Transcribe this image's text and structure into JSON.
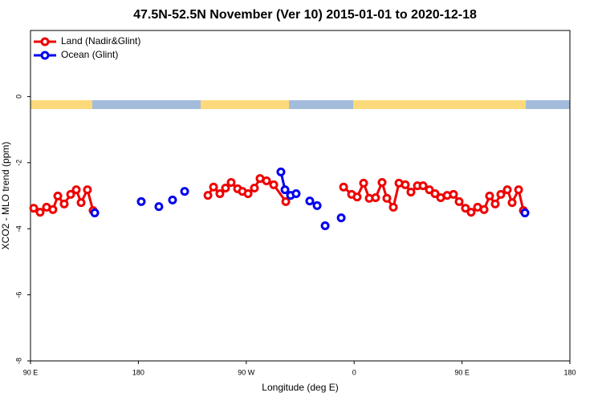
{
  "chart_data": {
    "type": "line",
    "title": "47.5N-52.5N November (Ver 10)   2015-01-01 to 2020-12-18",
    "x_label": "Longitude (deg E)",
    "y_label": "XCO2 - MLO trend (ppm)",
    "xlim": [
      90,
      540
    ],
    "xticks": [
      {
        "value": 90,
        "label": "90 E"
      },
      {
        "value": 180,
        "label": "180"
      },
      {
        "value": 270,
        "label": "90 W"
      },
      {
        "value": 360,
        "label": "0"
      },
      {
        "value": 450,
        "label": "90 E"
      },
      {
        "value": 540,
        "label": "180"
      }
    ],
    "ylim": [
      -8,
      2
    ],
    "yticks": [
      0,
      -2,
      -4,
      -6,
      -8
    ],
    "legend": "top-left",
    "series": [
      {
        "name": "Land (Nadir&Glint)",
        "color": "#ee0000",
        "x": [
          92.7,
          98,
          103.4,
          108.7,
          112.8,
          118.1,
          123.5,
          128.2,
          132.2,
          137.5,
          142.2,
          null,
          238,
          242.7,
          248,
          252.7,
          257.4,
          262.8,
          266.8,
          271.5,
          276.8,
          281.5,
          286.9,
          292.9,
          303,
          null,
          351.2,
          357.9,
          362.5,
          367.9,
          372.6,
          377.9,
          383.3,
          387.3,
          392.7,
          397.4,
          402.7,
          407.4,
          412.8,
          417.5,
          422.8,
          427.5,
          432.2,
          437.6,
          442.9,
          447.6,
          452.9,
          457.6,
          463,
          468.4,
          473,
          477.7,
          482.4,
          487.8,
          491.8,
          497.2,
          501.2
        ],
        "values": [
          -3.38,
          -3.5,
          -3.35,
          -3.42,
          -3.01,
          -3.25,
          -2.96,
          -2.82,
          -3.21,
          -2.82,
          -3.45,
          null,
          -2.99,
          -2.74,
          -2.94,
          -2.77,
          -2.6,
          -2.79,
          -2.87,
          -2.94,
          -2.77,
          -2.48,
          -2.55,
          -2.67,
          -3.18,
          null,
          -2.74,
          -2.96,
          -3.04,
          -2.62,
          -3.08,
          -3.06,
          -2.6,
          -3.08,
          -3.35,
          -2.62,
          -2.67,
          -2.89,
          -2.7,
          -2.7,
          -2.82,
          -2.94,
          -3.06,
          -2.99,
          -2.96,
          -3.18,
          -3.38,
          -3.5,
          -3.35,
          -3.42,
          -3.01,
          -3.25,
          -2.96,
          -2.82,
          -3.21,
          -2.82,
          -3.45
        ]
      },
      {
        "name": "Ocean (Glint)",
        "color": "#0000ee",
        "x": [
          143.6,
          null,
          182.4,
          null,
          197.1,
          null,
          208.5,
          null,
          218.6,
          null,
          298.9,
          302.3,
          307,
          311.6,
          null,
          323,
          329.1,
          null,
          335.8,
          null,
          349.2,
          null,
          502.5
        ],
        "values": [
          -3.52,
          null,
          -3.18,
          null,
          -3.33,
          null,
          -3.13,
          null,
          -2.87,
          null,
          -2.28,
          -2.82,
          -2.99,
          -2.94,
          null,
          -3.16,
          -3.3,
          null,
          -3.91,
          null,
          -3.67,
          null,
          -3.52
        ]
      }
    ]
  }
}
